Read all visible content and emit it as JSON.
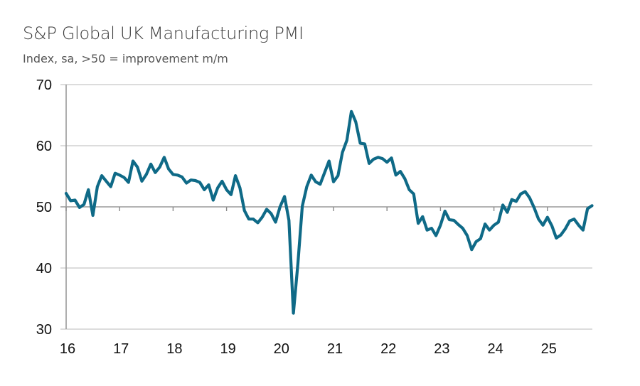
{
  "chart_data": {
    "type": "line",
    "title": "S&P Global UK Manufacturing PMI",
    "subtitle": "Index, sa, >50 = improvement m/m",
    "xlabel": "",
    "ylabel": "",
    "ylim": [
      30,
      70
    ],
    "yticks": [
      "70",
      "60",
      "50",
      "40",
      "30"
    ],
    "ytick_values": [
      70,
      60,
      50,
      40,
      30
    ],
    "xticks": [
      "16",
      "17",
      "18",
      "19",
      "20",
      "21",
      "22",
      "23",
      "24",
      "25"
    ],
    "x_start": "2016-01",
    "x_frequency": "monthly",
    "grid": "horizontal",
    "line_color": "#0f6a87",
    "series": [
      {
        "name": "UK Manufacturing PMI",
        "values": [
          52.2,
          51.0,
          51.1,
          49.9,
          50.4,
          52.8,
          48.6,
          53.3,
          55.1,
          54.2,
          53.3,
          55.5,
          55.2,
          54.8,
          54.0,
          57.5,
          56.5,
          54.2,
          55.3,
          57.0,
          55.6,
          56.5,
          58.1,
          56.2,
          55.3,
          55.2,
          54.9,
          53.9,
          54.4,
          54.3,
          54.0,
          52.8,
          53.6,
          51.1,
          53.1,
          54.2,
          52.8,
          52.0,
          55.1,
          53.1,
          49.4,
          48.0,
          48.0,
          47.4,
          48.3,
          49.6,
          48.9,
          47.5,
          50.0,
          51.7,
          47.8,
          32.6,
          40.7,
          50.1,
          53.3,
          55.2,
          54.1,
          53.7,
          55.6,
          57.5,
          54.1,
          55.1,
          58.9,
          60.9,
          65.6,
          63.9,
          60.4,
          60.3,
          57.1,
          57.8,
          58.1,
          57.9,
          57.3,
          58.0,
          55.2,
          55.8,
          54.6,
          52.8,
          52.1,
          47.3,
          48.4,
          46.2,
          46.5,
          45.3,
          47.0,
          49.3,
          47.9,
          47.8,
          47.1,
          46.5,
          45.3,
          43.0,
          44.3,
          44.8,
          47.2,
          46.2,
          47.0,
          47.5,
          50.3,
          49.1,
          51.2,
          50.9,
          52.1,
          52.5,
          51.5,
          49.9,
          48.0,
          47.0,
          48.3,
          46.9,
          44.9,
          45.4,
          46.4,
          47.7,
          48.0,
          47.0,
          46.2,
          49.7,
          50.2
        ]
      }
    ]
  }
}
